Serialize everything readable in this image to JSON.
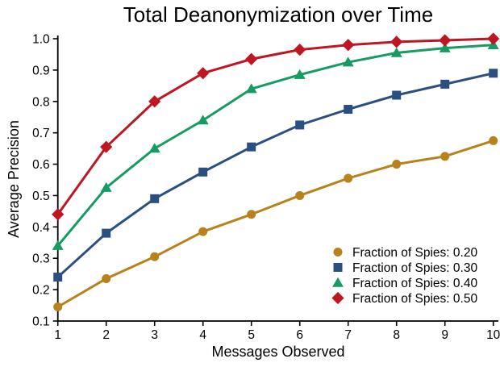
{
  "chart_data": {
    "type": "line",
    "title": "Total Deanonymization over Time",
    "xlabel": "Messages Observed",
    "ylabel": "Average Precision",
    "x": [
      1,
      2,
      3,
      4,
      5,
      6,
      7,
      8,
      9,
      10
    ],
    "xticks": [
      "1",
      "2",
      "3",
      "4",
      "5",
      "6",
      "7",
      "8",
      "9",
      "10"
    ],
    "yticks": [
      0.1,
      0.2,
      0.3,
      0.4,
      0.5,
      0.6,
      0.7,
      0.8,
      0.9,
      1.0
    ],
    "xlim": [
      1,
      10
    ],
    "ylim": [
      0.1,
      1.0
    ],
    "grid": false,
    "legend_position": "lower right",
    "axis_color": "#000000",
    "series": [
      {
        "name": "Fraction of Spies: 0.20",
        "marker": "circle",
        "color": "#B8811B",
        "values": [
          0.145,
          0.235,
          0.305,
          0.385,
          0.44,
          0.5,
          0.555,
          0.6,
          0.625,
          0.675
        ]
      },
      {
        "name": "Fraction of Spies: 0.30",
        "marker": "square",
        "color": "#2B4F81",
        "values": [
          0.24,
          0.38,
          0.49,
          0.575,
          0.655,
          0.725,
          0.775,
          0.82,
          0.855,
          0.89
        ]
      },
      {
        "name": "Fraction of Spies: 0.40",
        "marker": "triangle",
        "color": "#169B62",
        "values": [
          0.34,
          0.525,
          0.65,
          0.74,
          0.84,
          0.885,
          0.925,
          0.955,
          0.97,
          0.98
        ]
      },
      {
        "name": "Fraction of Spies: 0.50",
        "marker": "diamond",
        "color": "#BE1622",
        "values": [
          0.44,
          0.655,
          0.8,
          0.89,
          0.935,
          0.965,
          0.98,
          0.99,
          0.995,
          1.0
        ]
      }
    ]
  }
}
